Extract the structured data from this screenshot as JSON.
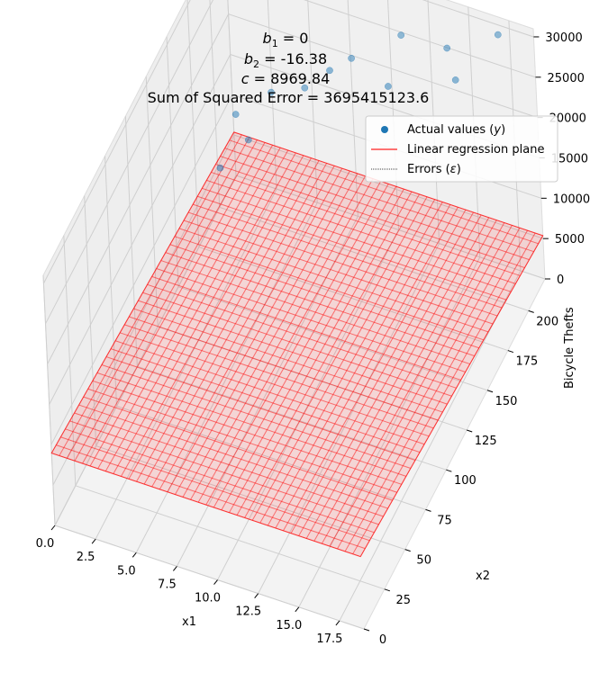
{
  "chart_data": {
    "type": "scatter",
    "title_lines": [
      {
        "sym": "b",
        "sub": "1",
        "text": " = 0"
      },
      {
        "sym": "b",
        "sub": "2",
        "text": " = -16.38"
      },
      {
        "sym": "c",
        "sub": "",
        "text": " = 8969.84"
      },
      {
        "sym": "",
        "sub": "",
        "text": "Sum of Squared Error = 3695415123.6"
      }
    ],
    "xlabel": "x1",
    "ylabel": "x2",
    "zlabel": "Bicycle Thefts",
    "x_ticks": [
      "0.0",
      "2.5",
      "5.0",
      "7.5",
      "10.0",
      "12.5",
      "15.0",
      "17.5"
    ],
    "y_ticks": [
      "0",
      "25",
      "50",
      "75",
      "100",
      "125",
      "150",
      "175",
      "200"
    ],
    "z_ticks": [
      "0",
      "5000",
      "10000",
      "15000",
      "20000",
      "25000",
      "30000"
    ],
    "xlim": [
      0,
      19
    ],
    "ylim": [
      0,
      220
    ],
    "zlim": [
      0,
      31000
    ],
    "plane": {
      "b1": 0,
      "b2": -16.38,
      "c": 8969.84,
      "color": "#ff0000"
    },
    "points_color": "#1f77b4",
    "points": [
      {
        "x": 1,
        "y": 205,
        "z": 11200
      },
      {
        "x": 1,
        "y": 185,
        "z": 8500
      },
      {
        "x": 2,
        "y": 200,
        "z": 9700
      },
      {
        "x": 3,
        "y": 210,
        "z": 14300
      },
      {
        "x": 5,
        "y": 212,
        "z": 15800
      },
      {
        "x": 7,
        "y": 205,
        "z": 20700
      },
      {
        "x": 8,
        "y": 212,
        "z": 21500
      },
      {
        "x": 11,
        "y": 215,
        "z": 25800
      },
      {
        "x": 11,
        "y": 198,
        "z": 22800
      },
      {
        "x": 14,
        "y": 212,
        "z": 26800
      },
      {
        "x": 15,
        "y": 202,
        "z": 25500
      },
      {
        "x": 17,
        "y": 216,
        "z": 29700
      }
    ],
    "legend": {
      "placement": "top-right",
      "entries": [
        {
          "label_main": "Actual values (",
          "label_math": "y",
          "label_end": ")"
        },
        {
          "label_main": "Linear regression plane",
          "label_math": "",
          "label_end": ""
        },
        {
          "label_main": "Errors (",
          "label_math": "ε",
          "label_end": ")"
        }
      ]
    }
  }
}
